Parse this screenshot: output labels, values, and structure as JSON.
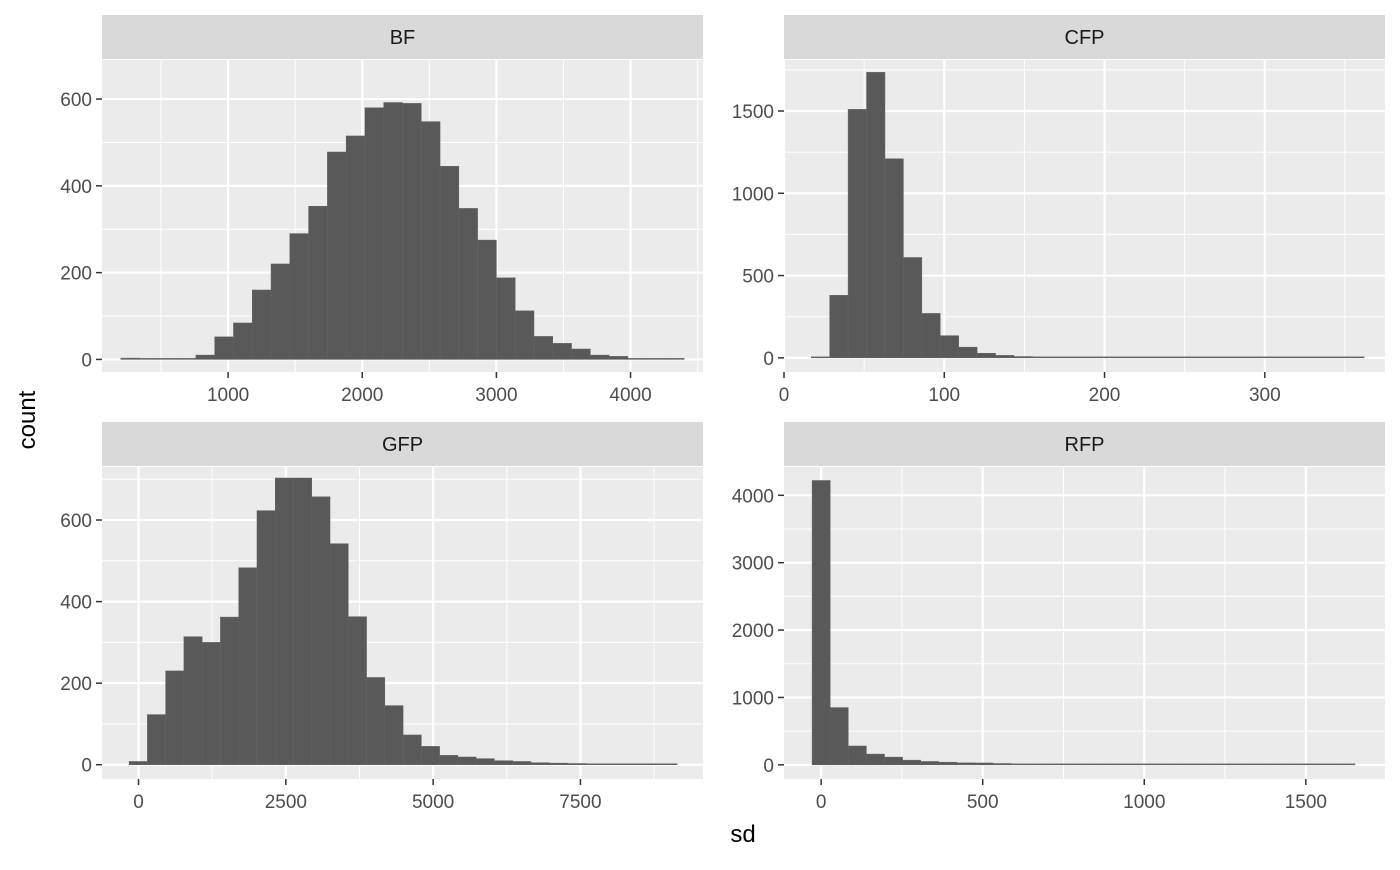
{
  "xlabel": "sd",
  "ylabel": "count",
  "chart_data": [
    {
      "type": "bar",
      "facet": "BF",
      "x_ticks": [
        1000,
        2000,
        3000,
        4000
      ],
      "x_tick_labels": [
        "1000",
        "2000",
        "3000",
        "4000"
      ],
      "y_ticks": [
        0,
        200,
        400,
        600
      ],
      "y_tick_labels": [
        "0",
        "200",
        "400",
        "600"
      ],
      "xlim": [
        60,
        4540
      ],
      "ylim": [
        -29,
        690
      ],
      "bins": [
        {
          "x0": 200,
          "x1": 340,
          "value": 3
        },
        {
          "x0": 340,
          "x1": 480,
          "value": 2
        },
        {
          "x0": 480,
          "x1": 620,
          "value": 0
        },
        {
          "x0": 620,
          "x1": 760,
          "value": 2
        },
        {
          "x0": 760,
          "x1": 900,
          "value": 10
        },
        {
          "x0": 900,
          "x1": 1040,
          "value": 52
        },
        {
          "x0": 1040,
          "x1": 1180,
          "value": 84
        },
        {
          "x0": 1180,
          "x1": 1320,
          "value": 160
        },
        {
          "x0": 1320,
          "x1": 1460,
          "value": 220
        },
        {
          "x0": 1460,
          "x1": 1600,
          "value": 290
        },
        {
          "x0": 1600,
          "x1": 1740,
          "value": 353
        },
        {
          "x0": 1740,
          "x1": 1880,
          "value": 478
        },
        {
          "x0": 1880,
          "x1": 2020,
          "value": 515
        },
        {
          "x0": 2020,
          "x1": 2160,
          "value": 580
        },
        {
          "x0": 2160,
          "x1": 2300,
          "value": 592
        },
        {
          "x0": 2300,
          "x1": 2440,
          "value": 590
        },
        {
          "x0": 2440,
          "x1": 2580,
          "value": 548
        },
        {
          "x0": 2580,
          "x1": 2720,
          "value": 445
        },
        {
          "x0": 2720,
          "x1": 2860,
          "value": 348
        },
        {
          "x0": 2860,
          "x1": 3000,
          "value": 275
        },
        {
          "x0": 3000,
          "x1": 3140,
          "value": 188
        },
        {
          "x0": 3140,
          "x1": 3280,
          "value": 112
        },
        {
          "x0": 3280,
          "x1": 3420,
          "value": 53
        },
        {
          "x0": 3420,
          "x1": 3560,
          "value": 37
        },
        {
          "x0": 3560,
          "x1": 3700,
          "value": 24
        },
        {
          "x0": 3700,
          "x1": 3840,
          "value": 10
        },
        {
          "x0": 3840,
          "x1": 3980,
          "value": 7
        },
        {
          "x0": 3980,
          "x1": 4120,
          "value": 0
        },
        {
          "x0": 4120,
          "x1": 4260,
          "value": 2
        },
        {
          "x0": 4260,
          "x1": 4400,
          "value": 2
        }
      ]
    },
    {
      "type": "bar",
      "facet": "CFP",
      "x_ticks": [
        0,
        100,
        200,
        300
      ],
      "x_tick_labels": [
        "0",
        "100",
        "200",
        "300"
      ],
      "y_ticks": [
        0,
        500,
        1000,
        1500
      ],
      "y_tick_labels": [
        "0",
        "500",
        "1000",
        "1500"
      ],
      "xlim": [
        0,
        375
      ],
      "ylim": [
        -86,
        1810
      ],
      "bins": [
        {
          "x0": 17,
          "x1": 28.5,
          "value": 5
        },
        {
          "x0": 28.5,
          "x1": 40,
          "value": 380
        },
        {
          "x0": 40,
          "x1": 51.5,
          "value": 1510
        },
        {
          "x0": 51.5,
          "x1": 63,
          "value": 1735
        },
        {
          "x0": 63,
          "x1": 74.5,
          "value": 1210
        },
        {
          "x0": 74.5,
          "x1": 86,
          "value": 610
        },
        {
          "x0": 86,
          "x1": 97.5,
          "value": 270
        },
        {
          "x0": 97.5,
          "x1": 109,
          "value": 135
        },
        {
          "x0": 109,
          "x1": 120.5,
          "value": 65
        },
        {
          "x0": 120.5,
          "x1": 132,
          "value": 28
        },
        {
          "x0": 132,
          "x1": 143.5,
          "value": 15
        },
        {
          "x0": 143.5,
          "x1": 155,
          "value": 8
        },
        {
          "x0": 155,
          "x1": 166.5,
          "value": 6
        },
        {
          "x0": 166.5,
          "x1": 178,
          "value": 4
        },
        {
          "x0": 178,
          "x1": 189.5,
          "value": 2
        },
        {
          "x0": 189.5,
          "x1": 201,
          "value": 2
        },
        {
          "x0": 201,
          "x1": 212.5,
          "value": 2
        },
        {
          "x0": 212.5,
          "x1": 224,
          "value": 1
        },
        {
          "x0": 224,
          "x1": 235.5,
          "value": 1
        },
        {
          "x0": 235.5,
          "x1": 247,
          "value": 2
        },
        {
          "x0": 247,
          "x1": 258.5,
          "value": 1
        },
        {
          "x0": 258.5,
          "x1": 270,
          "value": 0
        },
        {
          "x0": 270,
          "x1": 281.5,
          "value": 0
        },
        {
          "x0": 281.5,
          "x1": 293,
          "value": 0
        },
        {
          "x0": 293,
          "x1": 304.5,
          "value": 0
        },
        {
          "x0": 304.5,
          "x1": 316,
          "value": 1
        },
        {
          "x0": 316,
          "x1": 327.5,
          "value": 1
        },
        {
          "x0": 327.5,
          "x1": 339,
          "value": 0
        },
        {
          "x0": 339,
          "x1": 350.5,
          "value": 0
        },
        {
          "x0": 350.5,
          "x1": 362,
          "value": 1
        }
      ]
    },
    {
      "type": "bar",
      "facet": "GFP",
      "x_ticks": [
        0,
        2500,
        5000,
        7500
      ],
      "x_tick_labels": [
        "0",
        "2500",
        "5000",
        "7500"
      ],
      "y_ticks": [
        0,
        200,
        400,
        600
      ],
      "y_tick_labels": [
        "0",
        "200",
        "400",
        "600"
      ],
      "xlim": [
        -620,
        9580
      ],
      "ylim": [
        -35,
        730
      ],
      "bins": [
        {
          "x0": -160,
          "x1": 150,
          "value": 8
        },
        {
          "x0": 150,
          "x1": 460,
          "value": 123
        },
        {
          "x0": 460,
          "x1": 770,
          "value": 230
        },
        {
          "x0": 770,
          "x1": 1080,
          "value": 314
        },
        {
          "x0": 1080,
          "x1": 1390,
          "value": 300
        },
        {
          "x0": 1390,
          "x1": 1700,
          "value": 362
        },
        {
          "x0": 1700,
          "x1": 2010,
          "value": 483
        },
        {
          "x0": 2010,
          "x1": 2320,
          "value": 623
        },
        {
          "x0": 2320,
          "x1": 2630,
          "value": 703
        },
        {
          "x0": 2630,
          "x1": 2940,
          "value": 703
        },
        {
          "x0": 2940,
          "x1": 3250,
          "value": 657
        },
        {
          "x0": 3250,
          "x1": 3560,
          "value": 542
        },
        {
          "x0": 3560,
          "x1": 3870,
          "value": 363
        },
        {
          "x0": 3870,
          "x1": 4180,
          "value": 214
        },
        {
          "x0": 4180,
          "x1": 4490,
          "value": 145
        },
        {
          "x0": 4490,
          "x1": 4800,
          "value": 73
        },
        {
          "x0": 4800,
          "x1": 5110,
          "value": 45
        },
        {
          "x0": 5110,
          "x1": 5420,
          "value": 23
        },
        {
          "x0": 5420,
          "x1": 5730,
          "value": 19
        },
        {
          "x0": 5730,
          "x1": 6040,
          "value": 15
        },
        {
          "x0": 6040,
          "x1": 6350,
          "value": 10
        },
        {
          "x0": 6350,
          "x1": 6660,
          "value": 8
        },
        {
          "x0": 6660,
          "x1": 6970,
          "value": 5
        },
        {
          "x0": 6970,
          "x1": 7280,
          "value": 4
        },
        {
          "x0": 7280,
          "x1": 7590,
          "value": 3
        },
        {
          "x0": 7590,
          "x1": 7900,
          "value": 2
        },
        {
          "x0": 7900,
          "x1": 8210,
          "value": 1
        },
        {
          "x0": 8210,
          "x1": 8520,
          "value": 1
        },
        {
          "x0": 8520,
          "x1": 8830,
          "value": 0
        },
        {
          "x0": 8830,
          "x1": 9140,
          "value": 1
        }
      ]
    },
    {
      "type": "bar",
      "facet": "RFP",
      "x_ticks": [
        0,
        500,
        1000,
        1500
      ],
      "x_tick_labels": [
        "0",
        "500",
        "1000",
        "1500"
      ],
      "y_ticks": [
        0,
        1000,
        2000,
        3000,
        4000
      ],
      "y_tick_labels": [
        "0",
        "1000",
        "2000",
        "3000",
        "4000"
      ],
      "xlim": [
        -115,
        1745
      ],
      "ylim": [
        -210,
        4420
      ],
      "bins": [
        {
          "x0": -28,
          "x1": 28,
          "value": 4220
        },
        {
          "x0": 28,
          "x1": 84,
          "value": 850
        },
        {
          "x0": 84,
          "x1": 140,
          "value": 280
        },
        {
          "x0": 140,
          "x1": 196,
          "value": 160
        },
        {
          "x0": 196,
          "x1": 252,
          "value": 115
        },
        {
          "x0": 252,
          "x1": 308,
          "value": 70
        },
        {
          "x0": 308,
          "x1": 364,
          "value": 50
        },
        {
          "x0": 364,
          "x1": 420,
          "value": 40
        },
        {
          "x0": 420,
          "x1": 476,
          "value": 30
        },
        {
          "x0": 476,
          "x1": 532,
          "value": 28
        },
        {
          "x0": 532,
          "x1": 588,
          "value": 20
        },
        {
          "x0": 588,
          "x1": 644,
          "value": 15
        },
        {
          "x0": 644,
          "x1": 700,
          "value": 12
        },
        {
          "x0": 700,
          "x1": 756,
          "value": 10
        },
        {
          "x0": 756,
          "x1": 812,
          "value": 8
        },
        {
          "x0": 812,
          "x1": 868,
          "value": 6
        },
        {
          "x0": 868,
          "x1": 924,
          "value": 5
        },
        {
          "x0": 924,
          "x1": 980,
          "value": 5
        },
        {
          "x0": 980,
          "x1": 1036,
          "value": 4
        },
        {
          "x0": 1036,
          "x1": 1092,
          "value": 3
        },
        {
          "x0": 1092,
          "x1": 1148,
          "value": 3
        },
        {
          "x0": 1148,
          "x1": 1204,
          "value": 2
        },
        {
          "x0": 1204,
          "x1": 1260,
          "value": 2
        },
        {
          "x0": 1260,
          "x1": 1316,
          "value": 2
        },
        {
          "x0": 1316,
          "x1": 1372,
          "value": 1
        },
        {
          "x0": 1372,
          "x1": 1428,
          "value": 1
        },
        {
          "x0": 1428,
          "x1": 1484,
          "value": 1
        },
        {
          "x0": 1484,
          "x1": 1540,
          "value": 1
        },
        {
          "x0": 1540,
          "x1": 1596,
          "value": 1
        },
        {
          "x0": 1596,
          "x1": 1652,
          "value": 1
        }
      ]
    }
  ]
}
